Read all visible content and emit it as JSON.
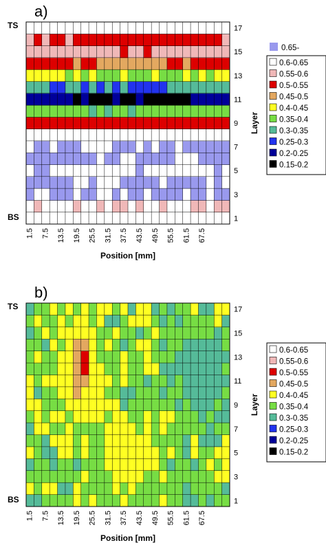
{
  "chart_data": [
    {
      "type": "heatmap",
      "panel_label": "a)",
      "xlabel": "Position [mm]",
      "ylabel": "Layer",
      "top_label": "TS",
      "bottom_label": "BS",
      "x_ticks": [
        "1.5",
        "7.5",
        "13.5",
        "19.5",
        "25.5",
        "31.5",
        "37.5",
        "43.5",
        "49.5",
        "55.5",
        "61.5",
        "67.5"
      ],
      "y_ticks": [
        "1",
        "3",
        "5",
        "7",
        "9",
        "11",
        "13",
        "15",
        "17"
      ],
      "x_range": [
        1.5,
        70.5
      ],
      "y_range": [
        1,
        18
      ],
      "grid": true,
      "legend_position": "right",
      "legend_top": {
        "label": "0.65-",
        "color": "#9999ee"
      },
      "legend": [
        {
          "label": "0.6-0.65",
          "color": "#ffffff"
        },
        {
          "label": "0.55-0.6",
          "color": "#f0b8b8"
        },
        {
          "label": "0.5-0.55",
          "color": "#dd0000"
        },
        {
          "label": "0.45-0.5",
          "color": "#e3a860"
        },
        {
          "label": "0.4-0.45",
          "color": "#ffff22"
        },
        {
          "label": "0.35-0.4",
          "color": "#77dd44"
        },
        {
          "label": "0.3-0.35",
          "color": "#55bb99"
        },
        {
          "label": "0.25-0.3",
          "color": "#2233ee"
        },
        {
          "label": "0.2-0.25",
          "color": "#000099"
        },
        {
          "label": "0.15-0.2",
          "color": "#000000"
        }
      ],
      "profile": [
        {
          "layer": 1,
          "value": 0.62
        },
        {
          "layer": 2,
          "value": 0.6
        },
        {
          "layer": 3,
          "value": 0.66
        },
        {
          "layer": 4,
          "value": 0.66
        },
        {
          "layer": 5,
          "value": 0.64
        },
        {
          "layer": 6,
          "value": 0.66
        },
        {
          "layer": 7,
          "value": 0.66
        },
        {
          "layer": 8,
          "value": 0.63
        },
        {
          "layer": 9,
          "value": 0.53
        },
        {
          "layer": 10,
          "value": 0.38
        },
        {
          "layer": 11,
          "value": 0.22
        },
        {
          "layer": 12,
          "value": 0.32
        },
        {
          "layer": 13,
          "value": 0.42
        },
        {
          "layer": 14,
          "value": 0.48
        },
        {
          "layer": 15,
          "value": 0.56
        },
        {
          "layer": 16,
          "value": 0.52
        },
        {
          "layer": 17,
          "value": 0.62
        },
        {
          "layer": 18,
          "value": 0.63
        }
      ]
    },
    {
      "type": "heatmap",
      "panel_label": "b)",
      "xlabel": "Position [mm]",
      "ylabel": "Layer",
      "top_label": "TS",
      "bottom_label": "BS",
      "x_ticks": [
        "1.5",
        "7.5",
        "13.5",
        "19.5",
        "25.5",
        "31.5",
        "37.5",
        "43.5",
        "49.5",
        "55.5",
        "61.5",
        "67.5"
      ],
      "y_ticks": [
        "1",
        "3",
        "5",
        "7",
        "9",
        "11",
        "13",
        "15",
        "17"
      ],
      "x_range": [
        1.5,
        70.5
      ],
      "y_range": [
        1,
        18
      ],
      "grid": true,
      "legend_position": "right",
      "legend": [
        {
          "label": "0.6-0.65",
          "color": "#ffffff"
        },
        {
          "label": "0.55-0.6",
          "color": "#f0b8b8"
        },
        {
          "label": "0.5-0.55",
          "color": "#dd0000"
        },
        {
          "label": "0.45-0.5",
          "color": "#e3a860"
        },
        {
          "label": "0.4-0.45",
          "color": "#ffff22"
        },
        {
          "label": "0.35-0.4",
          "color": "#77dd44"
        },
        {
          "label": "0.3-0.35",
          "color": "#55bb99"
        },
        {
          "label": "0.25-0.3",
          "color": "#2233ee"
        },
        {
          "label": "0.2-0.25",
          "color": "#000099"
        },
        {
          "label": "0.15-0.2",
          "color": "#000000"
        }
      ],
      "regions": [
        {
          "value": 0.47,
          "x": [
            11,
            26
          ],
          "y": [
            8,
            17
          ]
        },
        {
          "value": 0.52,
          "x": [
            19,
            23
          ],
          "y": [
            11.5,
            15
          ]
        },
        {
          "value": 0.27,
          "x": [
            58,
            70.5
          ],
          "y": [
            10,
            14
          ]
        },
        {
          "value": 0.32,
          "x": [
            52,
            70.5
          ],
          "y": [
            8.5,
            15
          ]
        },
        {
          "value": 0.43,
          "x": [
            27,
            48
          ],
          "y": [
            2,
            8
          ]
        },
        {
          "value": 0.32,
          "x": [
            11,
            17
          ],
          "y": [
            1,
            3.5
          ]
        }
      ]
    }
  ]
}
